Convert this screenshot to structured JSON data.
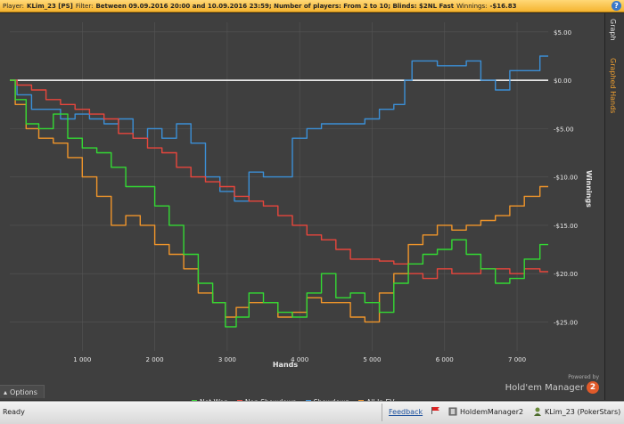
{
  "topbar": {
    "player_label": "Player:",
    "player_value": "KLim_23 [PS]",
    "filter_label": "Filter:",
    "filter_value": "Between 09.09.2016 20:00 and 10.09.2016 23:59; Number of players: From 2 to 10; Blinds: $2NL Fast",
    "winnings_label": "Winnings:",
    "winnings_value": "-$16.83",
    "help_label": "?"
  },
  "sidetabs": {
    "graph": "Graph",
    "graphed_hands": "Graphed Hands"
  },
  "options": {
    "label": "Options"
  },
  "powered": {
    "line1": "Powered by",
    "brand": "Hold'em Manager",
    "badge": "2"
  },
  "statusbar": {
    "ready": "Ready",
    "feedback": "Feedback",
    "app": "HoldemManager2",
    "player": "KLim_23 (PokerStars)"
  },
  "colors": {
    "net_won": "#33d933",
    "non_showdown": "#e8463c",
    "showdown": "#3b8fd6",
    "allin_ev": "#f0952a",
    "zero_line": "#ffffff"
  },
  "chart_data": {
    "type": "line",
    "xlabel": "Hands",
    "ylabel": "Winnings",
    "xlim": [
      0,
      7430
    ],
    "ylim": [
      -28,
      6
    ],
    "x_ticks": [
      1000,
      2000,
      3000,
      4000,
      5000,
      6000,
      7000
    ],
    "x_tick_labels": [
      "1 000",
      "2 000",
      "3 000",
      "4 000",
      "5 000",
      "6 000",
      "7 000"
    ],
    "y_ticks": [
      5,
      0,
      -5,
      -10,
      -15,
      -20,
      -25
    ],
    "y_tick_labels": [
      "$5.00",
      "$0.00",
      "-$5.00",
      "-$10.00",
      "-$15.00",
      "-$20.00",
      "-$25.00"
    ],
    "grid": true,
    "legend_position": "bottom",
    "series": [
      {
        "name": "Net Won",
        "color": "#33d933",
        "x": [
          0,
          150,
          300,
          500,
          700,
          900,
          1100,
          1300,
          1500,
          1700,
          1900,
          2100,
          2300,
          2500,
          2700,
          2900,
          3050,
          3200,
          3400,
          3600,
          3800,
          4000,
          4200,
          4400,
          4600,
          4800,
          5000,
          5200,
          5400,
          5600,
          5800,
          6000,
          6200,
          6400,
          6600,
          6800,
          7000,
          7200,
          7430
        ],
        "y": [
          0,
          -2,
          -4.5,
          -5,
          -3.5,
          -6,
          -7,
          -7.5,
          -9,
          -11,
          -11,
          -13,
          -15,
          -18,
          -21,
          -23,
          -25.5,
          -24.5,
          -22,
          -23,
          -24,
          -24.5,
          -22,
          -20,
          -22.5,
          -22,
          -23,
          -24,
          -21,
          -19,
          -18,
          -17.5,
          -16.5,
          -18,
          -19.5,
          -21,
          -20.5,
          -18.5,
          -17
        ]
      },
      {
        "name": "Non Showdown",
        "color": "#e8463c",
        "x": [
          0,
          200,
          400,
          600,
          800,
          1000,
          1200,
          1400,
          1600,
          1800,
          2000,
          2200,
          2400,
          2600,
          2800,
          3000,
          3200,
          3400,
          3600,
          3800,
          4000,
          4200,
          4400,
          4600,
          4800,
          5000,
          5200,
          5400,
          5600,
          5800,
          6000,
          6200,
          6400,
          6600,
          6800,
          7000,
          7200,
          7430
        ],
        "y": [
          0,
          -0.5,
          -1,
          -2,
          -2.5,
          -3,
          -3.5,
          -4,
          -5.5,
          -6,
          -7,
          -7.5,
          -9,
          -10,
          -10.5,
          -11,
          -12,
          -12.5,
          -13,
          -14,
          -15,
          -16,
          -16.5,
          -17.5,
          -18.5,
          -18.5,
          -18.7,
          -19,
          -20,
          -20.5,
          -19.5,
          -20,
          -20,
          -19.5,
          -19.5,
          -20,
          -19.5,
          -19.8
        ]
      },
      {
        "name": "Showdown",
        "color": "#3b8fd6",
        "x": [
          0,
          200,
          400,
          600,
          800,
          1000,
          1200,
          1400,
          1600,
          1800,
          2000,
          2200,
          2400,
          2600,
          2800,
          3000,
          3200,
          3400,
          3600,
          3800,
          4000,
          4200,
          4400,
          4600,
          4800,
          5000,
          5200,
          5400,
          5500,
          5600,
          5800,
          6000,
          6200,
          6400,
          6600,
          6800,
          7000,
          7200,
          7430
        ],
        "y": [
          0,
          -1.5,
          -3,
          -3,
          -4,
          -3.5,
          -4,
          -4.5,
          -4,
          -6,
          -5,
          -6,
          -4.5,
          -6.5,
          -10,
          -11.5,
          -12.5,
          -9.5,
          -10,
          -10,
          -6,
          -5,
          -4.5,
          -4.5,
          -4.5,
          -4,
          -3,
          -2.5,
          0,
          2,
          2,
          1.5,
          1.5,
          2,
          0,
          -1,
          1,
          1,
          2.5
        ]
      },
      {
        "name": "All-In EV",
        "color": "#f0952a",
        "x": [
          0,
          150,
          300,
          500,
          700,
          900,
          1100,
          1300,
          1500,
          1700,
          1900,
          2100,
          2300,
          2500,
          2700,
          2900,
          3050,
          3200,
          3400,
          3600,
          3800,
          4000,
          4200,
          4400,
          4600,
          4800,
          5000,
          5200,
          5400,
          5600,
          5800,
          6000,
          6200,
          6400,
          6600,
          6800,
          7000,
          7200,
          7430
        ],
        "y": [
          0,
          -2.5,
          -5,
          -6,
          -6.5,
          -8,
          -10,
          -12,
          -15,
          -14,
          -15,
          -17,
          -18,
          -19.5,
          -22,
          -23,
          -24.5,
          -23.5,
          -23,
          -23,
          -24.5,
          -24,
          -22.5,
          -23,
          -23,
          -24.5,
          -25,
          -22,
          -20,
          -17,
          -16,
          -15,
          -15.5,
          -15,
          -14.5,
          -14,
          -13,
          -12,
          -11
        ]
      }
    ]
  }
}
